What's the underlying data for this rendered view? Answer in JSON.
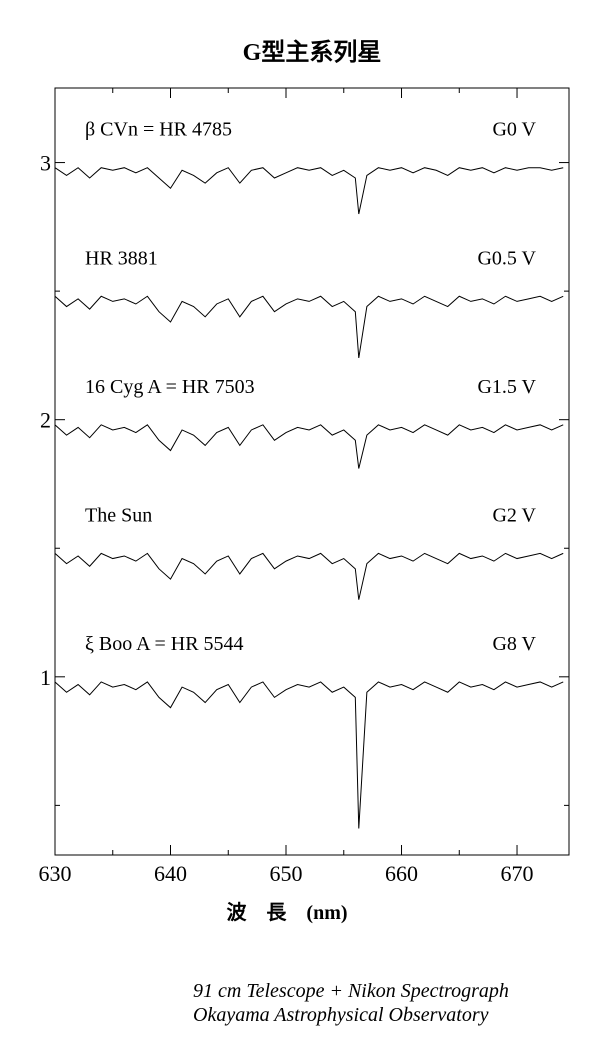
{
  "chart_data": {
    "type": "line",
    "title": "G型主系列星",
    "xlabel": "波　長　(nm)",
    "credits": [
      "91 cm Telescope + Nikon Spectrograph",
      "Okayama Astrophysical Observatory"
    ],
    "xlim": [
      630,
      674.5
    ],
    "xticks": [
      630,
      640,
      650,
      660,
      670
    ],
    "x_minor_ticks": [
      635,
      645,
      655,
      665
    ],
    "ylim": [
      0.307,
      3.29
    ],
    "yticks": [
      1,
      2,
      3
    ],
    "y_minor_ticks": [
      0.5,
      1.5,
      2.5
    ],
    "x": [
      630,
      631,
      632,
      633,
      634,
      635,
      636,
      637,
      638,
      639,
      640,
      641,
      642,
      643,
      644,
      645,
      646,
      647,
      648,
      649,
      650,
      651,
      652,
      653,
      654,
      655,
      656,
      656.3,
      657,
      658,
      659,
      660,
      661,
      662,
      663,
      664,
      665,
      666,
      667,
      668,
      669,
      670,
      671,
      672,
      673,
      674
    ],
    "series": [
      {
        "name": "β  CVn = HR 4785",
        "spectral_type": "G0 V",
        "color": "#000000",
        "values": [
          2.98,
          2.95,
          2.98,
          2.94,
          2.98,
          2.97,
          2.98,
          2.96,
          2.98,
          2.94,
          2.9,
          2.97,
          2.95,
          2.92,
          2.96,
          2.98,
          2.92,
          2.97,
          2.98,
          2.94,
          2.96,
          2.98,
          2.97,
          2.98,
          2.95,
          2.97,
          2.94,
          2.8,
          2.95,
          2.98,
          2.97,
          2.98,
          2.96,
          2.98,
          2.97,
          2.95,
          2.98,
          2.97,
          2.98,
          2.96,
          2.98,
          2.97,
          2.98,
          2.98,
          2.97,
          2.98
        ]
      },
      {
        "name": "HR 3881",
        "spectral_type": "G0.5 V",
        "color": "#000000",
        "values": [
          2.48,
          2.44,
          2.47,
          2.43,
          2.48,
          2.46,
          2.47,
          2.45,
          2.48,
          2.42,
          2.38,
          2.46,
          2.44,
          2.4,
          2.45,
          2.47,
          2.4,
          2.46,
          2.48,
          2.42,
          2.45,
          2.47,
          2.46,
          2.48,
          2.44,
          2.46,
          2.42,
          2.24,
          2.44,
          2.48,
          2.46,
          2.47,
          2.45,
          2.48,
          2.46,
          2.44,
          2.48,
          2.46,
          2.47,
          2.45,
          2.48,
          2.46,
          2.47,
          2.48,
          2.46,
          2.48
        ]
      },
      {
        "name": "16 Cyg A = HR 7503",
        "spectral_type": "G1.5 V",
        "color": "#000000",
        "values": [
          1.98,
          1.94,
          1.97,
          1.93,
          1.98,
          1.96,
          1.97,
          1.95,
          1.98,
          1.92,
          1.88,
          1.96,
          1.94,
          1.9,
          1.95,
          1.97,
          1.9,
          1.96,
          1.98,
          1.92,
          1.95,
          1.97,
          1.96,
          1.98,
          1.94,
          1.96,
          1.92,
          1.81,
          1.94,
          1.98,
          1.96,
          1.97,
          1.95,
          1.98,
          1.96,
          1.94,
          1.98,
          1.96,
          1.97,
          1.95,
          1.98,
          1.96,
          1.97,
          1.98,
          1.96,
          1.98
        ]
      },
      {
        "name": "The Sun",
        "spectral_type": "G2 V",
        "color": "#000000",
        "values": [
          1.48,
          1.44,
          1.47,
          1.43,
          1.48,
          1.46,
          1.47,
          1.45,
          1.48,
          1.42,
          1.38,
          1.46,
          1.44,
          1.4,
          1.45,
          1.47,
          1.4,
          1.46,
          1.48,
          1.42,
          1.45,
          1.47,
          1.46,
          1.48,
          1.44,
          1.46,
          1.42,
          1.3,
          1.44,
          1.48,
          1.46,
          1.47,
          1.45,
          1.48,
          1.46,
          1.44,
          1.48,
          1.46,
          1.47,
          1.45,
          1.48,
          1.46,
          1.47,
          1.48,
          1.46,
          1.48
        ]
      },
      {
        "name": "ξ  Boo A = HR 5544",
        "spectral_type": "G8 V",
        "color": "#000000",
        "values": [
          0.98,
          0.94,
          0.97,
          0.93,
          0.98,
          0.96,
          0.97,
          0.95,
          0.98,
          0.92,
          0.88,
          0.96,
          0.94,
          0.9,
          0.95,
          0.97,
          0.9,
          0.96,
          0.98,
          0.92,
          0.95,
          0.97,
          0.96,
          0.98,
          0.94,
          0.96,
          0.92,
          0.41,
          0.94,
          0.98,
          0.96,
          0.97,
          0.95,
          0.98,
          0.96,
          0.94,
          0.98,
          0.96,
          0.97,
          0.95,
          0.98,
          0.96,
          0.97,
          0.98,
          0.96,
          0.98
        ]
      }
    ]
  }
}
